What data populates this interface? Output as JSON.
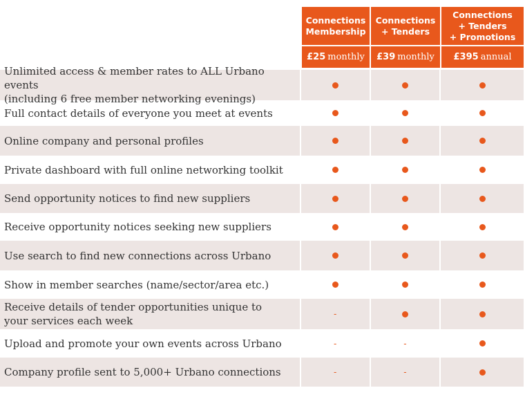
{
  "accent_color": "#e8581c",
  "row_shade_color": "#ede5e3",
  "plans": [
    {
      "name": "Connections\nMembership",
      "price": "£25",
      "period": "monthly"
    },
    {
      "name": "Connections\n+ Tenders",
      "price": "£39",
      "period": "monthly"
    },
    {
      "name": "Connections\n+ Tenders\n+ Promotions",
      "price": "£395",
      "period": "annual"
    }
  ],
  "features": [
    {
      "label": "Unlimited access & member rates to ALL Urbano events\n(including 6 free member networking evenings)",
      "included": [
        true,
        true,
        true
      ]
    },
    {
      "label": "Full contact details of everyone you meet at events",
      "included": [
        true,
        true,
        true
      ]
    },
    {
      "label": "Online company and personal profiles",
      "included": [
        true,
        true,
        true
      ]
    },
    {
      "label": "Private dashboard with full online networking toolkit",
      "included": [
        true,
        true,
        true
      ]
    },
    {
      "label": "Send opportunity notices to find new suppliers",
      "included": [
        true,
        true,
        true
      ]
    },
    {
      "label": "Receive opportunity notices seeking new suppliers",
      "included": [
        true,
        true,
        true
      ]
    },
    {
      "label": "Use search to find new connections across Urbano",
      "included": [
        true,
        true,
        true
      ]
    },
    {
      "label": "Show in member searches (name/sector/area etc.)",
      "included": [
        true,
        true,
        true
      ]
    },
    {
      "label": "Receive details of tender opportunities unique to\nyour services each week",
      "included": [
        false,
        true,
        true
      ]
    },
    {
      "label": "Upload and promote your own events across Urbano",
      "included": [
        false,
        false,
        true
      ]
    },
    {
      "label": "Company profile sent to 5,000+ Urbano connections",
      "included": [
        false,
        false,
        true
      ]
    }
  ]
}
